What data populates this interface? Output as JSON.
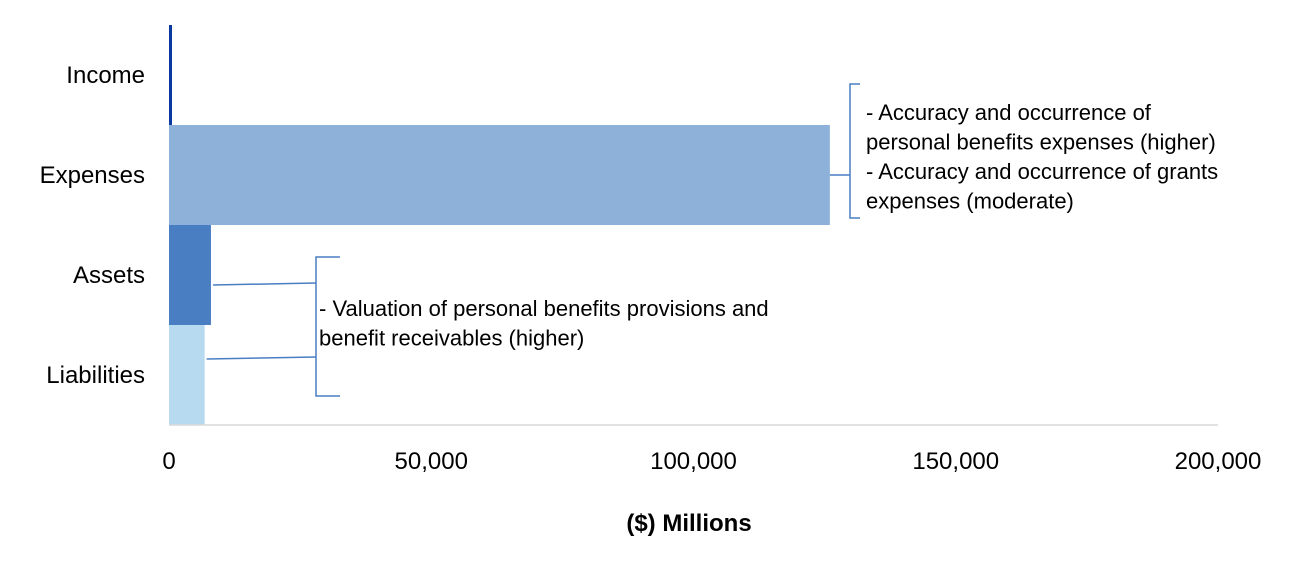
{
  "chart_data": {
    "type": "bar",
    "orientation": "horizontal",
    "title": "",
    "xlabel": "($) Millions",
    "ylabel": "",
    "categories": [
      "Income",
      "Expenses",
      "Assets",
      "Liabilities"
    ],
    "values": [
      500,
      126000,
      8000,
      6800
    ],
    "xlim": [
      0,
      200000
    ],
    "xticks": [
      0,
      50000,
      100000,
      150000,
      200000
    ],
    "xtick_labels": [
      "0",
      "50,000",
      "100,000",
      "150,000",
      "200,000"
    ],
    "grid": false,
    "legend": "none",
    "colors": [
      "#0a3aa0",
      "#8eb1d9",
      "#4a7ec2",
      "#b8daf0"
    ],
    "annotations": [
      {
        "id": "expenses-risks",
        "targets": [
          "Expenses"
        ],
        "lines": [
          "- Accuracy and occurrence of",
          "personal benefits expenses (higher)",
          "- Accuracy and occurrence of grants",
          "expenses (moderate)"
        ]
      },
      {
        "id": "balance-sheet-risks",
        "targets": [
          "Assets",
          "Liabilities"
        ],
        "lines": [
          "- Valuation of personal benefits provisions and",
          "benefit receivables (higher)"
        ]
      }
    ],
    "annotation_color": "#4a7ec2"
  }
}
